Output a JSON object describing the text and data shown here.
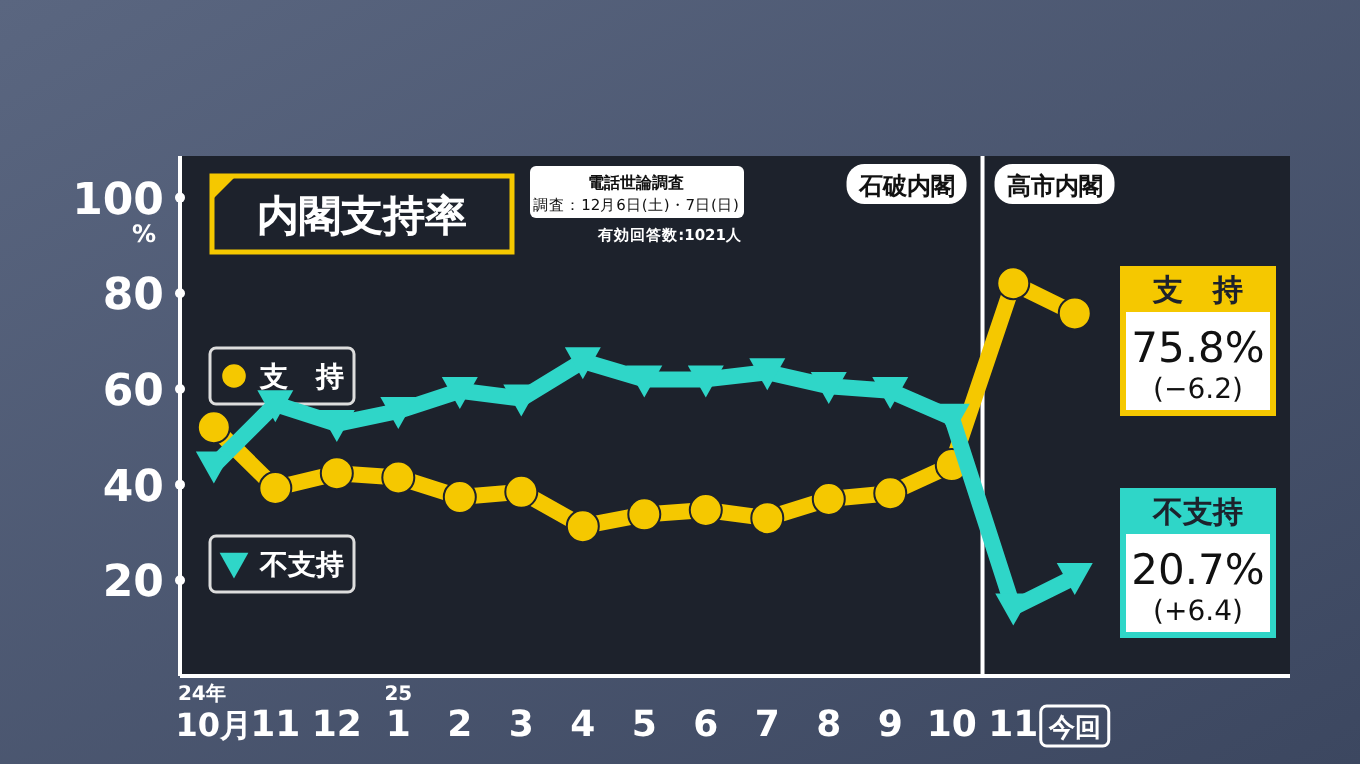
{
  "chart_data": {
    "type": "line",
    "title": "内閣支持率",
    "ylabel": "%",
    "categories": [
      "10月",
      "11",
      "12",
      "1",
      "2",
      "3",
      "4",
      "5",
      "6",
      "7",
      "8",
      "9",
      "10",
      "11",
      "今回"
    ],
    "ylim": [
      0,
      108.7
    ],
    "yticks": [
      20,
      40,
      60,
      80,
      100
    ],
    "series": [
      {
        "name": "支　持",
        "color": "#f5c800",
        "marker": "circle",
        "values": [
          52,
          39.3,
          42.4,
          41.5,
          37.4,
          38.5,
          31.3,
          33.8,
          34.7,
          33,
          37,
          38.2,
          44.1,
          82.1,
          75.8
        ],
        "value_labels": [
          null,
          null,
          null,
          null,
          null,
          null,
          null,
          null,
          null,
          null,
          null,
          null,
          null,
          null,
          "75.8%"
        ]
      },
      {
        "name": "不支持",
        "color": "#2fd6c8",
        "marker": "triangle",
        "values": [
          44,
          56.8,
          52.7,
          55.4,
          59.6,
          58,
          65.8,
          62,
          62,
          63.5,
          60.6,
          59.6,
          54,
          14.3,
          20.7
        ],
        "value_labels": [
          null,
          null,
          null,
          null,
          null,
          null,
          null,
          null,
          null,
          null,
          null,
          null,
          null,
          null,
          "20.7%"
        ]
      }
    ],
    "annotations": [
      "24年",
      "25",
      "(−6.2)",
      "(+6.4)",
      "電話世論調査",
      "調査：12月6日(土)・7日(日)",
      "有効回答数:1021人",
      "石破内閣",
      "高市内閣"
    ],
    "legend": "left",
    "grid": false
  }
}
